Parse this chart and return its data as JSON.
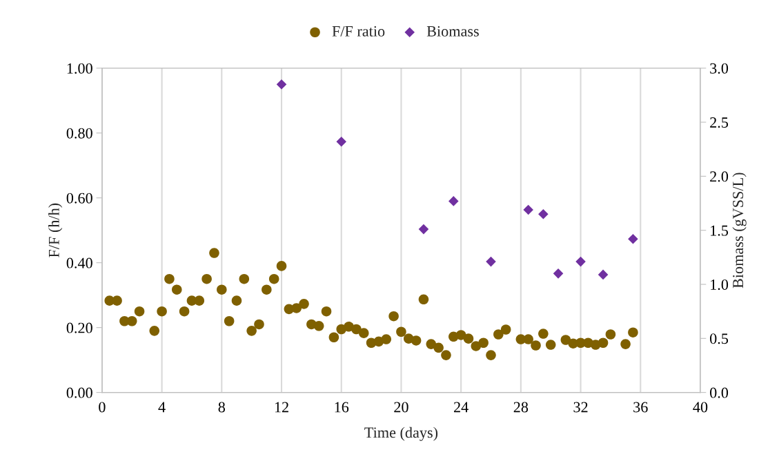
{
  "chart_data": {
    "type": "scatter",
    "xlabel": "Time (days)",
    "ylabel": "F/F (h/h)",
    "y2label": "Biomass (gVSS/L)",
    "xlim": [
      0,
      40
    ],
    "xticks": [
      0,
      4,
      8,
      12,
      16,
      20,
      24,
      28,
      32,
      36,
      40
    ],
    "ylim": [
      0,
      1
    ],
    "yticks": [
      {
        "value": 0,
        "label": "0.00"
      },
      {
        "value": 0.2,
        "label": "0.20"
      },
      {
        "value": 0.4,
        "label": "0.40"
      },
      {
        "value": 0.6,
        "label": "0.60"
      },
      {
        "value": 0.8,
        "label": "0.80"
      },
      {
        "value": 1,
        "label": "1.00"
      }
    ],
    "y2lim": [
      0,
      3
    ],
    "y2ticks": [
      {
        "value": 0,
        "label": "0.0"
      },
      {
        "value": 0.5,
        "label": "0.5"
      },
      {
        "value": 1,
        "label": "1.0"
      },
      {
        "value": 1.5,
        "label": "1.5"
      },
      {
        "value": 2,
        "label": "2.0"
      },
      {
        "value": 2.5,
        "label": "2.5"
      },
      {
        "value": 3,
        "label": "3.0"
      }
    ],
    "grid": "x",
    "legend": "top",
    "series": [
      {
        "name": "F/F ratio",
        "color": "#7f6000",
        "marker": "circle",
        "x": [
          0.5,
          1.0,
          1.5,
          2.0,
          2.5,
          3.5,
          4.0,
          4.5,
          5.0,
          5.5,
          6.0,
          6.5,
          7.0,
          7.5,
          8.0,
          8.5,
          9.0,
          9.5,
          10.0,
          10.5,
          11.0,
          11.5,
          12.0,
          12.5,
          13.0,
          13.5,
          14.0,
          14.5,
          15.0,
          15.5,
          16.0,
          16.5,
          17.0,
          17.5,
          18.0,
          18.5,
          19.0,
          19.5,
          20.0,
          20.5,
          21.0,
          21.5,
          22.0,
          22.5,
          23.0,
          23.5,
          24.0,
          24.5,
          25.0,
          25.5,
          26.0,
          26.5,
          27.0,
          28.0,
          28.5,
          29.0,
          29.5,
          30.0,
          31.0,
          31.5,
          32.0,
          32.5,
          33.0,
          33.5,
          34.0,
          35.0,
          35.5
        ],
        "values": [
          0.283,
          0.283,
          0.22,
          0.22,
          0.25,
          0.19,
          0.25,
          0.35,
          0.317,
          0.25,
          0.283,
          0.283,
          0.35,
          0.43,
          0.317,
          0.22,
          0.283,
          0.35,
          0.19,
          0.21,
          0.317,
          0.35,
          0.39,
          0.257,
          0.26,
          0.273,
          0.21,
          0.205,
          0.25,
          0.17,
          0.195,
          0.203,
          0.195,
          0.183,
          0.153,
          0.157,
          0.164,
          0.235,
          0.187,
          0.166,
          0.16,
          0.287,
          0.149,
          0.138,
          0.115,
          0.172,
          0.177,
          0.166,
          0.143,
          0.153,
          0.115,
          0.179,
          0.194,
          0.164,
          0.164,
          0.145,
          0.181,
          0.147,
          0.162,
          0.151,
          0.153,
          0.153,
          0.147,
          0.153,
          0.179,
          0.149,
          0.185
        ]
      },
      {
        "name": "Biomass",
        "color": "#7030a0",
        "marker": "diamond",
        "axis": "y2",
        "x": [
          12,
          16,
          21.5,
          23.5,
          26,
          28.5,
          29.5,
          30.5,
          32,
          33.5,
          35.5
        ],
        "values": [
          2.85,
          2.32,
          1.51,
          1.77,
          1.21,
          1.69,
          1.65,
          1.1,
          1.21,
          1.09,
          1.42
        ]
      }
    ]
  }
}
